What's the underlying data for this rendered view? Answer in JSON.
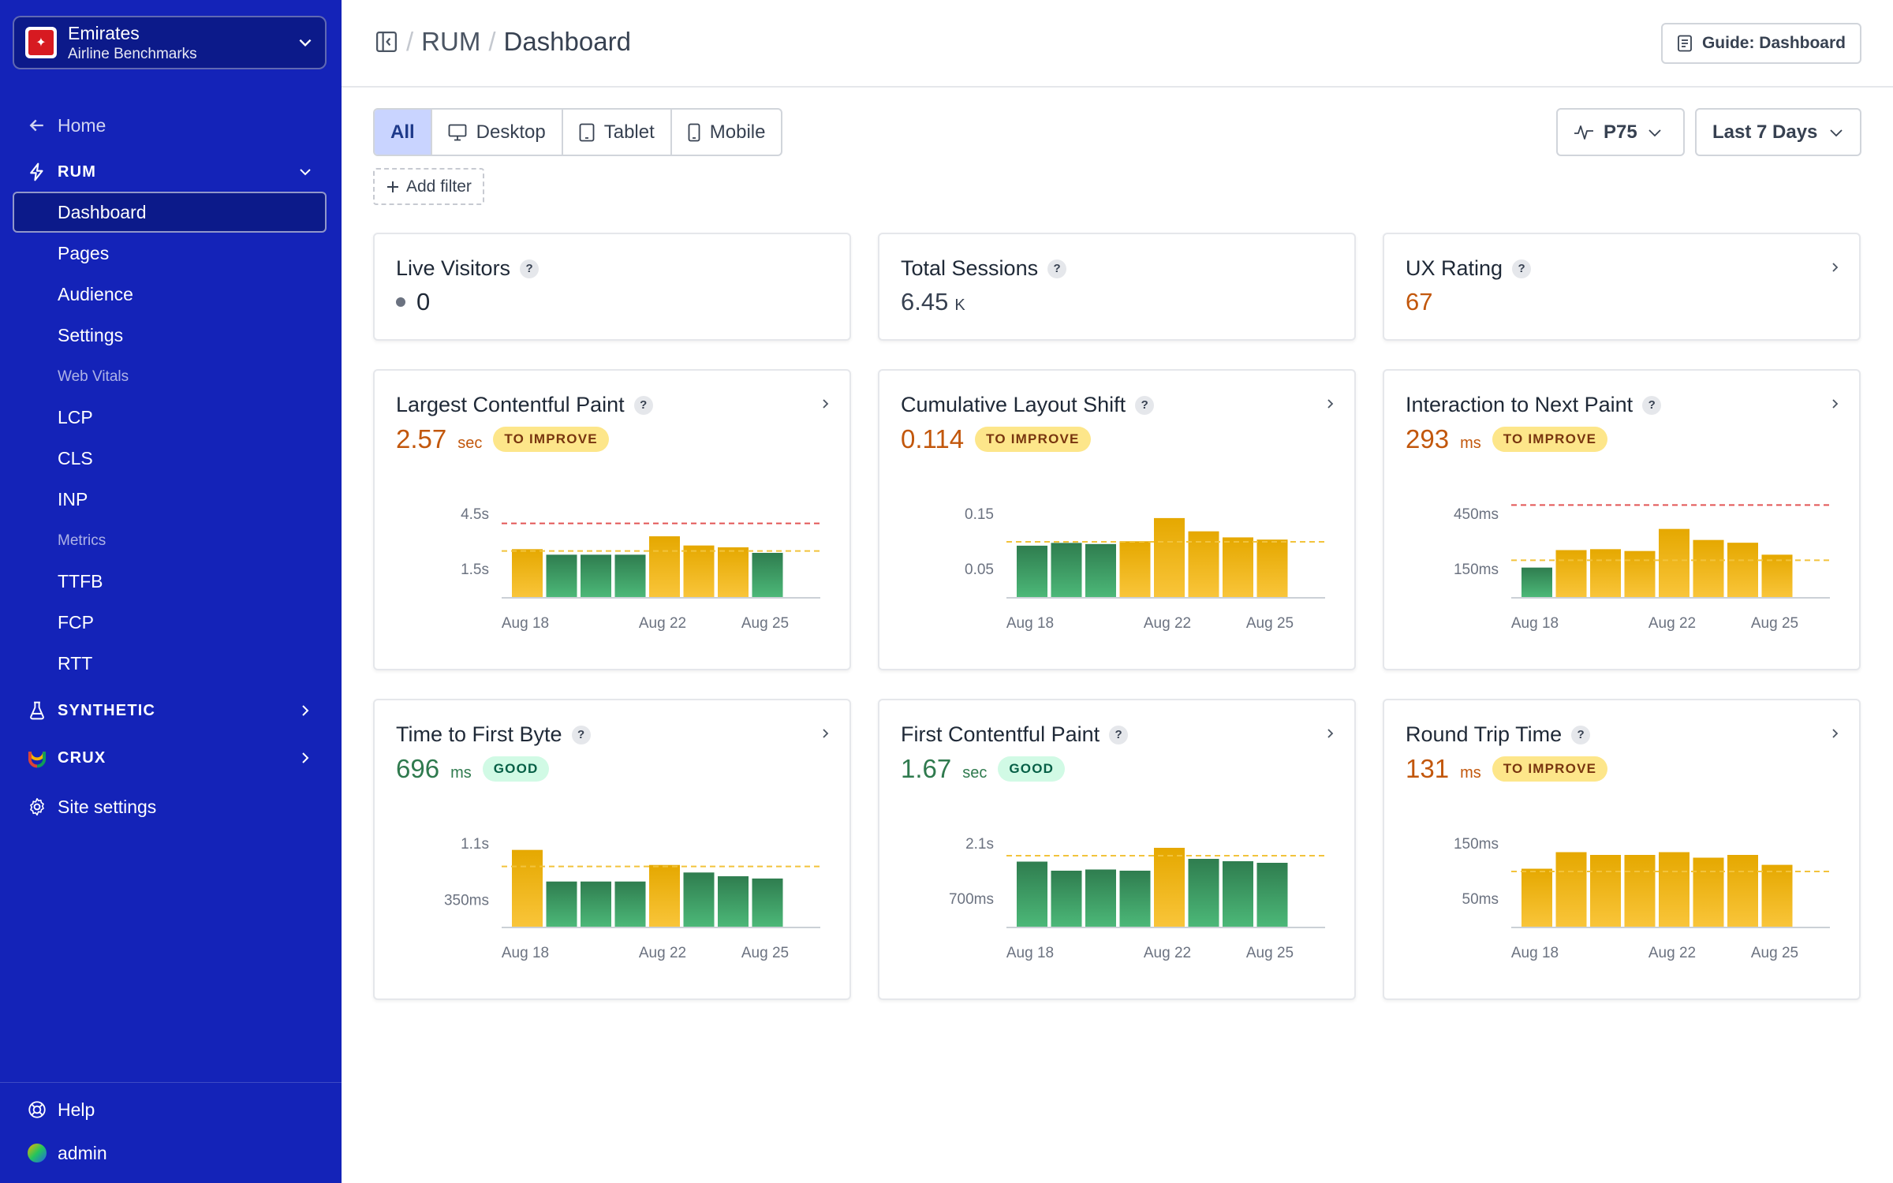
{
  "org": {
    "name": "Emirates",
    "sub": "Airline Benchmarks"
  },
  "sidebar": {
    "home": "Home",
    "rum": "RUM",
    "rum_items": [
      "Dashboard",
      "Pages",
      "Audience",
      "Settings"
    ],
    "web_vitals_header": "Web Vitals",
    "web_vitals": [
      "LCP",
      "CLS",
      "INP"
    ],
    "metrics_header": "Metrics",
    "metrics": [
      "TTFB",
      "FCP",
      "RTT"
    ],
    "synthetic": "SYNTHETIC",
    "crux": "CRUX",
    "site_settings": "Site settings",
    "help": "Help",
    "user": "admin"
  },
  "header": {
    "crumb1": "RUM",
    "crumb2": "Dashboard",
    "guide": "Guide: Dashboard"
  },
  "toolbar": {
    "devices": [
      "All",
      "Desktop",
      "Tablet",
      "Mobile"
    ],
    "add_filter": "Add filter",
    "percentile": "P75",
    "range": "Last 7 Days"
  },
  "stats": [
    {
      "title": "Live Visitors",
      "value": "0"
    },
    {
      "title": "Total Sessions",
      "value": "6.45",
      "unit": "K"
    },
    {
      "title": "UX Rating",
      "value": "67",
      "color": "#c2570c"
    }
  ],
  "colors": {
    "warn": "#f4b400",
    "good": "#3a9e62",
    "threshold": "#e25555",
    "p75line": "#f2c33c"
  },
  "chart_data": [
    {
      "type": "bar",
      "title": "Largest Contentful Paint",
      "value": "2.57",
      "unit": "sec",
      "badge": "TO IMPROVE",
      "status": "warn",
      "yticks": [
        "4.5s",
        "1.5s"
      ],
      "ytick_values": [
        4.5,
        1.5
      ],
      "ylim": [
        0,
        6.0
      ],
      "threshold_line": 4.0,
      "p75_line": 2.5,
      "xlabels": [
        "Aug 18",
        "Aug 22",
        "Aug 25"
      ],
      "categories": [
        "Aug 18",
        "Aug 19",
        "Aug 20",
        "Aug 21",
        "Aug 22",
        "Aug 23",
        "Aug 24",
        "Aug 25"
      ],
      "values": [
        2.6,
        2.3,
        2.3,
        2.3,
        3.3,
        2.8,
        2.7,
        2.4
      ],
      "bar_status": [
        "warn",
        "good",
        "good",
        "good",
        "warn",
        "warn",
        "warn",
        "good"
      ]
    },
    {
      "type": "bar",
      "title": "Cumulative Layout Shift",
      "value": "0.114",
      "unit": "",
      "badge": "TO IMPROVE",
      "status": "warn",
      "yticks": [
        "0.15",
        "0.05"
      ],
      "ytick_values": [
        0.15,
        0.05
      ],
      "ylim": [
        0,
        0.2
      ],
      "threshold_line": null,
      "p75_line": 0.1,
      "xlabels": [
        "Aug 18",
        "Aug 22",
        "Aug 25"
      ],
      "categories": [
        "Aug 18",
        "Aug 19",
        "Aug 20",
        "Aug 21",
        "Aug 22",
        "Aug 23",
        "Aug 24",
        "Aug 25"
      ],
      "values": [
        0.093,
        0.098,
        0.096,
        0.101,
        0.143,
        0.119,
        0.108,
        0.104
      ],
      "bar_status": [
        "good",
        "good",
        "good",
        "warn",
        "warn",
        "warn",
        "warn",
        "warn"
      ]
    },
    {
      "type": "bar",
      "title": "Interaction to Next Paint",
      "value": "293",
      "unit": "ms",
      "badge": "TO IMPROVE",
      "status": "warn",
      "yticks": [
        "450ms",
        "150ms"
      ],
      "ytick_values": [
        450,
        150
      ],
      "ylim": [
        0,
        600
      ],
      "threshold_line": 500,
      "p75_line": 200,
      "xlabels": [
        "Aug 18",
        "Aug 22",
        "Aug 25"
      ],
      "categories": [
        "Aug 18",
        "Aug 19",
        "Aug 20",
        "Aug 21",
        "Aug 22",
        "Aug 23",
        "Aug 24",
        "Aug 25"
      ],
      "values": [
        160,
        255,
        260,
        250,
        370,
        310,
        295,
        230
      ],
      "bar_status": [
        "good",
        "warn",
        "warn",
        "warn",
        "warn",
        "warn",
        "warn",
        "warn"
      ]
    },
    {
      "type": "bar",
      "title": "Time to First Byte",
      "value": "696",
      "unit": "ms",
      "badge": "GOOD",
      "status": "good",
      "yticks": [
        "1.1s",
        "350ms"
      ],
      "ytick_values": [
        1100,
        350
      ],
      "ylim": [
        0,
        1467
      ],
      "threshold_line": null,
      "p75_line": 800,
      "xlabels": [
        "Aug 18",
        "Aug 22",
        "Aug 25"
      ],
      "categories": [
        "Aug 18",
        "Aug 19",
        "Aug 20",
        "Aug 21",
        "Aug 22",
        "Aug 23",
        "Aug 24",
        "Aug 25"
      ],
      "values": [
        1020,
        600,
        600,
        600,
        820,
        720,
        670,
        640
      ],
      "bar_status": [
        "warn",
        "good",
        "good",
        "good",
        "warn",
        "good",
        "good",
        "good"
      ]
    },
    {
      "type": "bar",
      "title": "First Contentful Paint",
      "value": "1.67",
      "unit": "sec",
      "badge": "GOOD",
      "status": "good",
      "yticks": [
        "2.1s",
        "700ms"
      ],
      "ytick_values": [
        2100,
        700
      ],
      "ylim": [
        0,
        2800
      ],
      "threshold_line": null,
      "p75_line": 1800,
      "xlabels": [
        "Aug 18",
        "Aug 22",
        "Aug 25"
      ],
      "categories": [
        "Aug 18",
        "Aug 19",
        "Aug 20",
        "Aug 21",
        "Aug 22",
        "Aug 23",
        "Aug 24",
        "Aug 25"
      ],
      "values": [
        1650,
        1420,
        1450,
        1420,
        2000,
        1720,
        1660,
        1620
      ],
      "bar_status": [
        "good",
        "good",
        "good",
        "good",
        "warn",
        "good",
        "good",
        "good"
      ]
    },
    {
      "type": "bar",
      "title": "Round Trip Time",
      "value": "131",
      "unit": "ms",
      "badge": "TO IMPROVE",
      "status": "warn",
      "yticks": [
        "150ms",
        "50ms"
      ],
      "ytick_values": [
        150,
        50
      ],
      "ylim": [
        0,
        200
      ],
      "threshold_line": null,
      "p75_line": 100,
      "xlabels": [
        "Aug 18",
        "Aug 22",
        "Aug 25"
      ],
      "categories": [
        "Aug 18",
        "Aug 19",
        "Aug 20",
        "Aug 21",
        "Aug 22",
        "Aug 23",
        "Aug 24",
        "Aug 25"
      ],
      "values": [
        105,
        135,
        130,
        130,
        135,
        125,
        130,
        112
      ],
      "bar_status": [
        "warn",
        "warn",
        "warn",
        "warn",
        "warn",
        "warn",
        "warn",
        "warn"
      ]
    }
  ]
}
